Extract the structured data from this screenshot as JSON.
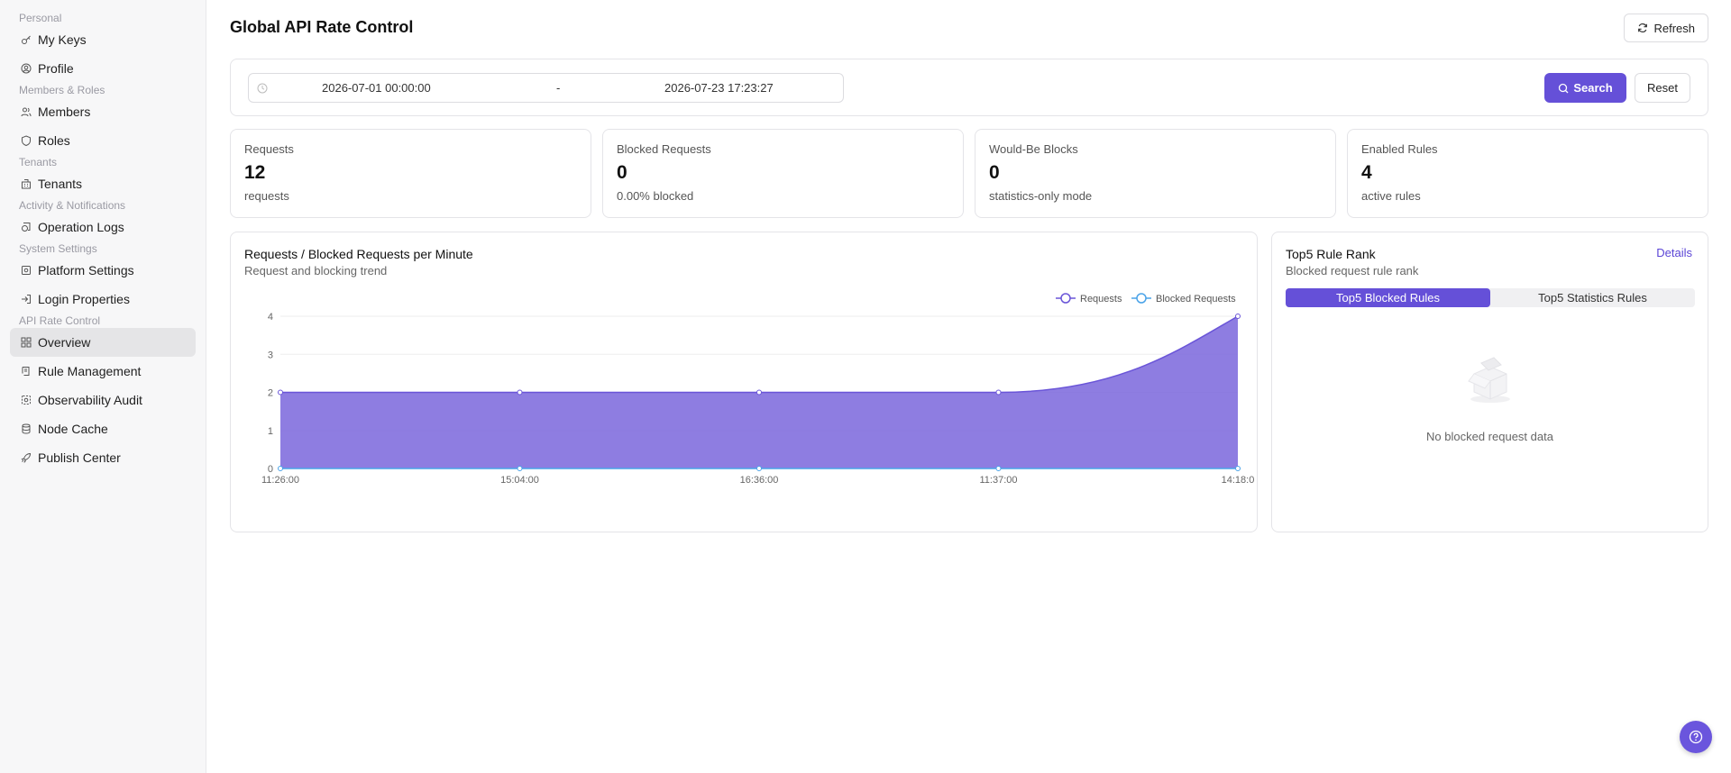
{
  "sidebar": {
    "groups": [
      {
        "label": "Personal",
        "items": [
          {
            "label": "My Keys",
            "icon": "key-icon"
          },
          {
            "label": "Profile",
            "icon": "user-circle-icon"
          }
        ]
      },
      {
        "label": "Members & Roles",
        "items": [
          {
            "label": "Members",
            "icon": "users-icon"
          },
          {
            "label": "Roles",
            "icon": "shield-icon"
          }
        ]
      },
      {
        "label": "Tenants",
        "items": [
          {
            "label": "Tenants",
            "icon": "building-icon"
          }
        ]
      },
      {
        "label": "Activity & Notifications",
        "items": [
          {
            "label": "Operation Logs",
            "icon": "log-icon"
          }
        ]
      },
      {
        "label": "System Settings",
        "items": [
          {
            "label": "Platform Settings",
            "icon": "settings-icon"
          },
          {
            "label": "Login Properties",
            "icon": "login-icon"
          }
        ]
      },
      {
        "label": "API Rate Control",
        "items": [
          {
            "label": "Overview",
            "icon": "grid-icon",
            "active": true
          },
          {
            "label": "Rule Management",
            "icon": "rules-icon"
          },
          {
            "label": "Observability Audit",
            "icon": "audit-icon"
          },
          {
            "label": "Node Cache",
            "icon": "database-icon"
          },
          {
            "label": "Publish Center",
            "icon": "rocket-icon"
          }
        ]
      }
    ]
  },
  "header": {
    "title": "Global API Rate Control",
    "refresh_label": "Refresh"
  },
  "filter": {
    "start": "2026-07-01 00:00:00",
    "separator": "-",
    "end": "2026-07-23 17:23:27",
    "search_label": "Search",
    "reset_label": "Reset"
  },
  "stats": [
    {
      "label": "Requests",
      "value": "12",
      "sub": "requests"
    },
    {
      "label": "Blocked Requests",
      "value": "0",
      "sub": "0.00% blocked"
    },
    {
      "label": "Would-Be Blocks",
      "value": "0",
      "sub": "statistics-only mode"
    },
    {
      "label": "Enabled Rules",
      "value": "4",
      "sub": "active rules"
    }
  ],
  "chart_card": {
    "title": "Requests / Blocked Requests per Minute",
    "subtitle": "Request and blocking trend"
  },
  "chart_data": {
    "type": "area",
    "categories": [
      "11:26:00",
      "15:04:00",
      "16:36:00",
      "11:37:00",
      "14:18:0"
    ],
    "series": [
      {
        "name": "Requests",
        "values": [
          2,
          2,
          2,
          2,
          4
        ],
        "color": "#6a55d8"
      },
      {
        "name": "Blocked Requests",
        "values": [
          0,
          0,
          0,
          0,
          0
        ],
        "color": "#4aa3e8"
      }
    ],
    "ylim": [
      0,
      4
    ],
    "yticks": [
      0,
      1,
      2,
      3,
      4
    ],
    "legend": "top-right",
    "grid": true
  },
  "rank_card": {
    "title": "Top5 Rule Rank",
    "subtitle": "Blocked request rule rank",
    "details_label": "Details",
    "tabs": [
      "Top5 Blocked Rules",
      "Top5 Statistics Rules"
    ],
    "active_tab": 0,
    "empty_text": "No blocked request data"
  },
  "colors": {
    "accent": "#6550d8"
  }
}
